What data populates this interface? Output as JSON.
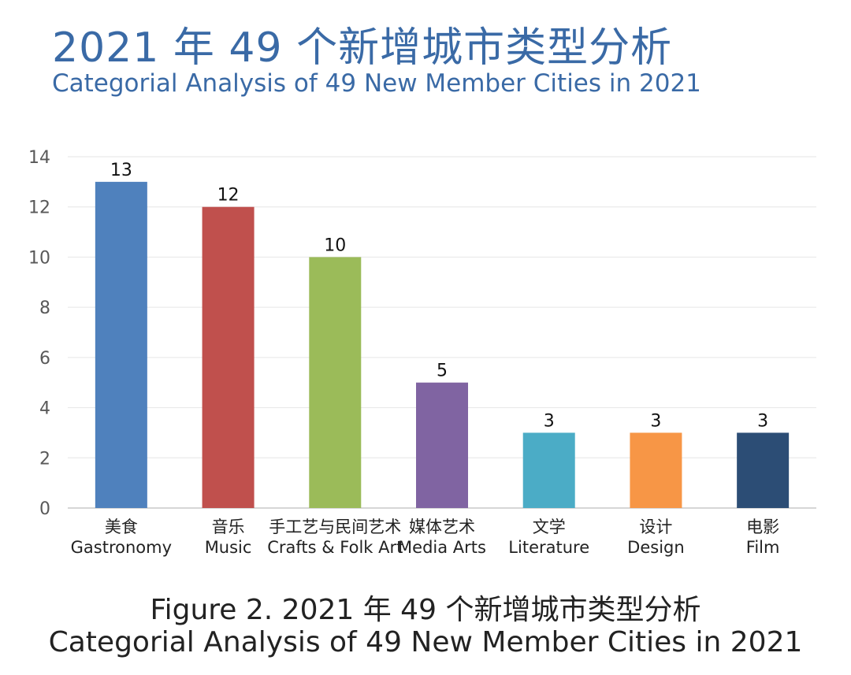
{
  "header": {
    "title_cn": "2021 年 49 个新增城市类型分析",
    "title_en": "Categorial Analysis of 49 New Member Cities in 2021"
  },
  "caption": {
    "line1": "Figure 2. 2021 年 49 个新增城市类型分析",
    "line2": "Categorial Analysis of 49 New Member Cities in 2021"
  },
  "chart_data": {
    "type": "bar",
    "categories": [
      {
        "cn": "美食",
        "en": "Gastronomy"
      },
      {
        "cn": "音乐",
        "en": "Music"
      },
      {
        "cn": "手工艺与民间艺术",
        "en": "Crafts & Folk Art"
      },
      {
        "cn": "媒体艺术",
        "en": "Media Arts"
      },
      {
        "cn": "文学",
        "en": "Literature"
      },
      {
        "cn": "设计",
        "en": "Design"
      },
      {
        "cn": "电影",
        "en": "Film"
      }
    ],
    "values": [
      13,
      12,
      10,
      5,
      3,
      3,
      3
    ],
    "colors": [
      "#4f81bd",
      "#c0504d",
      "#9bbb59",
      "#8064a2",
      "#4bacc6",
      "#f79646",
      "#2c4d75"
    ],
    "ylim": [
      0,
      14
    ],
    "yticks": [
      "0",
      "2",
      "4",
      "6",
      "8",
      "10",
      "12",
      "14"
    ],
    "grid": true,
    "legend": false,
    "title": "",
    "xlabel": "",
    "ylabel": ""
  }
}
